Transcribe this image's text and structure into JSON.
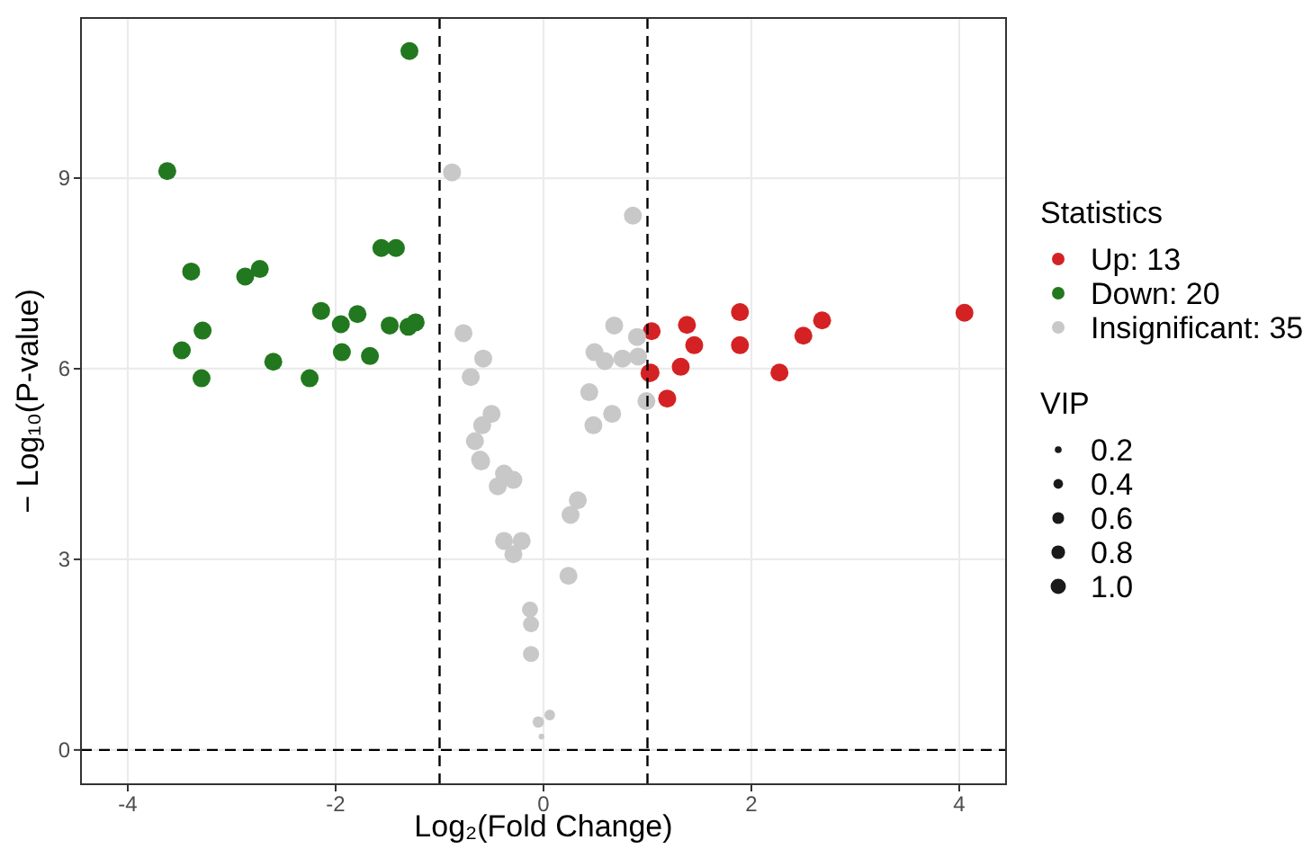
{
  "chart_data": {
    "type": "bubble",
    "xlabel": "Log₂(Fold Change)",
    "ylabel": "− Log₁₀(P-value)",
    "legend_title": "Statistics",
    "annotations": [
      "VIP"
    ],
    "xlim": [
      -4.45,
      4.45
    ],
    "ylim": [
      -0.54,
      11.52
    ],
    "xticks": [
      -4,
      -2,
      0,
      2,
      4
    ],
    "yticks": [
      0,
      3,
      6,
      9
    ],
    "grid": true,
    "legend": "right",
    "marker": "circle",
    "size_legend": [
      0.2,
      0.4,
      0.6,
      0.8,
      {
        "value": 1,
        "label": "1.0"
      }
    ],
    "ref_lines": [
      {
        "axis": "x",
        "value": -1,
        "line_style": "dashed",
        "color": "#000000"
      },
      {
        "axis": "x",
        "value": 1,
        "line_style": "dashed",
        "color": "#000000"
      },
      {
        "axis": "y",
        "value": 0,
        "line_style": "dashed",
        "color": "#000000"
      }
    ],
    "series": [
      {
        "name": "Up: 13",
        "color": "#d42224",
        "x": [
          1.04,
          1.38,
          1.89,
          2.68,
          2.5,
          4.05,
          1.45,
          1.89,
          1.03,
          1.02,
          1.32,
          2.27,
          1.19
        ],
        "values": [
          6.59,
          6.69,
          6.89,
          6.76,
          6.52,
          6.88,
          6.37,
          6.37,
          5.94,
          5.93,
          6.03,
          5.94,
          5.53
        ],
        "sizes": [
          1,
          1,
          1,
          1,
          1,
          1,
          1,
          1,
          1,
          1,
          1,
          1,
          1
        ]
      },
      {
        "name": "Down: 20",
        "color": "#22781f",
        "x": [
          -1.29,
          -3.62,
          -3.39,
          -2.87,
          -2.73,
          -1.56,
          -1.42,
          -2.14,
          -1.95,
          -1.79,
          -1.48,
          -1.3,
          -1.23,
          -3.28,
          -3.48,
          -1.94,
          -1.67,
          -2.6,
          -3.29,
          -2.25
        ],
        "values": [
          11.0,
          9.11,
          7.53,
          7.45,
          7.57,
          7.9,
          7.9,
          6.91,
          6.7,
          6.86,
          6.68,
          6.66,
          6.73,
          6.6,
          6.29,
          6.26,
          6.2,
          6.11,
          5.85,
          5.85
        ],
        "sizes": [
          1,
          1,
          1,
          1,
          1,
          1,
          1,
          1,
          1,
          1,
          1,
          1,
          1,
          1,
          1,
          1,
          1,
          1,
          1,
          1
        ]
      },
      {
        "name": "Insignificant: 35",
        "color": "#c8c8c8",
        "x": [
          -0.88,
          0.86,
          -0.77,
          -0.58,
          -0.7,
          -0.5,
          -0.59,
          -0.66,
          -0.61,
          0.68,
          0.9,
          0.49,
          0.59,
          0.76,
          0.91,
          0.44,
          0.66,
          0.48,
          0.99,
          -0.38,
          -0.29,
          -0.44,
          0.33,
          0.26,
          -0.38,
          -0.21,
          -0.29,
          0.24,
          -0.13,
          -0.12,
          -0.12,
          -0.05,
          0.06,
          -0.02,
          -0.6
        ],
        "values": [
          9.09,
          8.41,
          6.56,
          6.16,
          5.87,
          5.29,
          5.11,
          4.86,
          4.57,
          6.68,
          6.5,
          6.26,
          6.12,
          6.16,
          6.19,
          5.63,
          5.29,
          5.11,
          5.49,
          4.35,
          4.25,
          4.15,
          3.93,
          3.7,
          3.29,
          3.29,
          3.08,
          2.74,
          2.21,
          1.98,
          1.51,
          0.44,
          0.55,
          0.21,
          4.54
        ],
        "sizes": [
          1,
          1,
          1,
          1,
          1,
          1,
          1,
          1,
          1,
          1,
          1,
          1,
          1,
          1,
          1,
          1,
          1,
          1,
          1,
          1,
          1,
          1,
          1,
          1,
          1,
          1,
          1,
          1,
          0.8,
          0.8,
          0.8,
          0.4,
          0.35,
          0.1,
          1
        ]
      }
    ]
  }
}
